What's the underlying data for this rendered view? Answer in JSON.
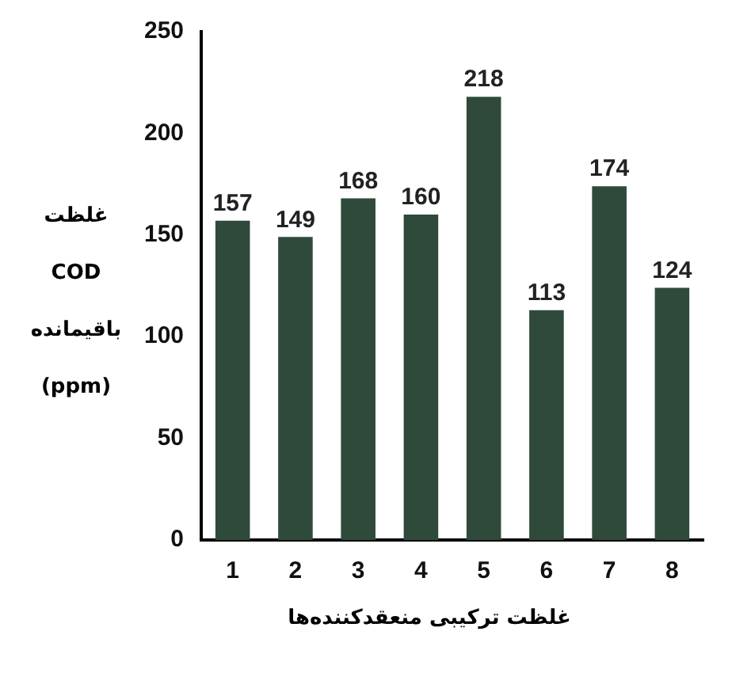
{
  "chart_data": {
    "type": "bar",
    "xlabel": "غلظت ترکیبی منعقدکننده‌ها",
    "ylabel": "غلظت COD باقیمانده (ppm)",
    "categories": [
      "1",
      "2",
      "3",
      "4",
      "5",
      "6",
      "7",
      "8"
    ],
    "values": [
      157,
      149,
      168,
      160,
      218,
      113,
      174,
      124
    ],
    "color": "#2f4a3a",
    "ylim": [
      0,
      250
    ],
    "yticks": [
      0,
      50,
      100,
      150,
      200,
      250
    ],
    "grid": false,
    "data_labels": true,
    "legend": false
  }
}
